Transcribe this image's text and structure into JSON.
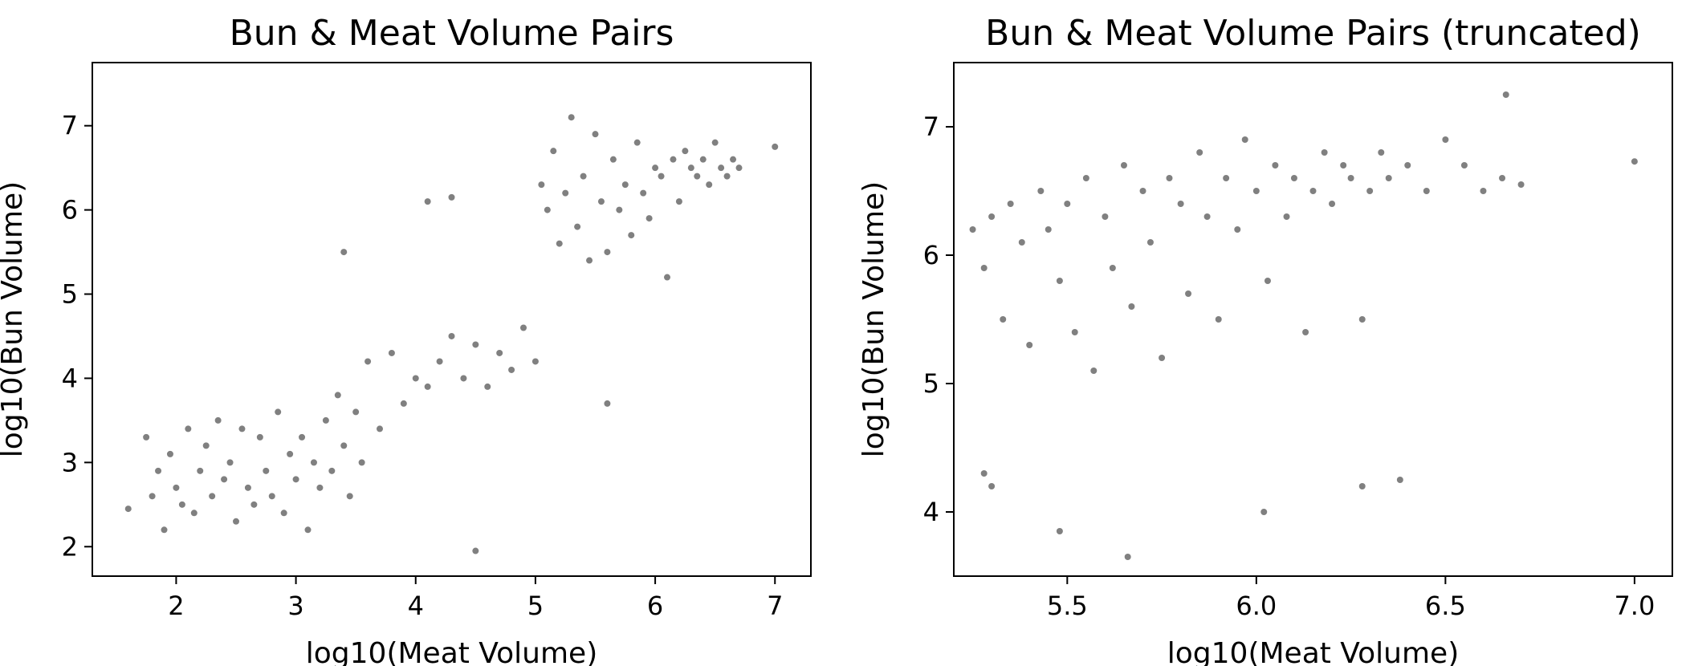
{
  "chart_data": [
    {
      "type": "scatter",
      "title": "Bun & Meat Volume Pairs",
      "xlabel": "log10(Meat Volume)",
      "ylabel": "log10(Bun Volume)",
      "xlim": [
        1.3,
        7.3
      ],
      "ylim": [
        1.65,
        7.75
      ],
      "xticks": [
        2,
        3,
        4,
        5,
        6,
        7
      ],
      "yticks": [
        2,
        3,
        4,
        5,
        6,
        7
      ],
      "xtick_labels": [
        "2",
        "3",
        "4",
        "5",
        "6",
        "7"
      ],
      "ytick_labels": [
        "2",
        "3",
        "4",
        "5",
        "6",
        "7"
      ],
      "grid": false,
      "marker_color": "#808080",
      "series": [
        {
          "x": [
            1.6,
            1.75,
            1.8,
            1.85,
            1.9,
            1.95,
            2.0,
            2.05,
            2.1,
            2.15,
            2.2,
            2.25,
            2.3,
            2.35,
            2.4,
            2.45,
            2.5,
            2.55,
            2.6,
            2.65,
            2.7,
            2.75,
            2.8,
            2.85,
            2.9,
            2.95,
            3.0,
            3.05,
            3.1,
            3.15,
            3.2,
            3.25,
            3.3,
            3.35,
            3.4,
            3.45,
            3.5,
            3.55,
            3.6,
            3.7,
            3.8,
            3.9,
            4.0,
            4.1,
            4.2,
            4.3,
            4.4,
            4.5,
            4.6,
            4.7,
            4.8,
            4.9,
            5.0,
            5.05,
            5.1,
            5.15,
            5.2,
            5.25,
            5.3,
            5.35,
            5.4,
            5.45,
            5.5,
            5.55,
            5.6,
            5.65,
            5.7,
            5.75,
            5.8,
            5.85,
            5.9,
            5.95,
            6.0,
            6.05,
            6.1,
            6.15,
            6.2,
            6.25,
            6.3,
            6.35,
            6.4,
            6.45,
            6.5,
            6.55,
            6.6,
            6.65,
            6.7,
            7.0,
            3.4,
            4.5,
            5.6,
            4.1,
            4.3
          ],
          "y": [
            2.45,
            3.3,
            2.6,
            2.9,
            2.2,
            3.1,
            2.7,
            2.5,
            3.4,
            2.4,
            2.9,
            3.2,
            2.6,
            3.5,
            2.8,
            3.0,
            2.3,
            3.4,
            2.7,
            2.5,
            3.3,
            2.9,
            2.6,
            3.6,
            2.4,
            3.1,
            2.8,
            3.3,
            2.2,
            3.0,
            2.7,
            3.5,
            2.9,
            3.8,
            3.2,
            2.6,
            3.6,
            3.0,
            4.2,
            3.4,
            4.3,
            3.7,
            4.0,
            3.9,
            4.2,
            4.5,
            4.0,
            4.4,
            3.9,
            4.3,
            4.1,
            4.6,
            4.2,
            6.3,
            6.0,
            6.7,
            5.6,
            6.2,
            7.1,
            5.8,
            6.4,
            5.4,
            6.9,
            6.1,
            5.5,
            6.6,
            6.0,
            6.3,
            5.7,
            6.8,
            6.2,
            5.9,
            6.5,
            6.4,
            5.2,
            6.6,
            6.1,
            6.7,
            6.5,
            6.4,
            6.6,
            6.3,
            6.8,
            6.5,
            6.4,
            6.6,
            6.5,
            6.75,
            5.5,
            1.95,
            3.7,
            6.1,
            6.15
          ]
        }
      ]
    },
    {
      "type": "scatter",
      "title": "Bun & Meat Volume Pairs (truncated)",
      "xlabel": "log10(Meat Volume)",
      "ylabel": "log10(Bun Volume)",
      "xlim": [
        5.2,
        7.1
      ],
      "ylim": [
        3.5,
        7.5
      ],
      "xticks": [
        5.5,
        6.0,
        6.5,
        7.0
      ],
      "yticks": [
        4,
        5,
        6,
        7
      ],
      "xtick_labels": [
        "5.5",
        "6.0",
        "6.5",
        "7.0"
      ],
      "ytick_labels": [
        "4",
        "5",
        "6",
        "7"
      ],
      "grid": false,
      "marker_color": "#808080",
      "series": [
        {
          "x": [
            5.25,
            5.28,
            5.3,
            5.33,
            5.35,
            5.38,
            5.4,
            5.43,
            5.45,
            5.48,
            5.5,
            5.52,
            5.55,
            5.57,
            5.6,
            5.62,
            5.65,
            5.67,
            5.7,
            5.72,
            5.75,
            5.77,
            5.8,
            5.82,
            5.85,
            5.87,
            5.9,
            5.92,
            5.95,
            5.97,
            6.0,
            6.03,
            6.05,
            6.08,
            6.1,
            6.13,
            6.15,
            6.18,
            6.2,
            6.23,
            6.25,
            6.28,
            6.3,
            6.33,
            6.35,
            6.4,
            6.45,
            6.5,
            6.55,
            6.6,
            6.65,
            6.7,
            7.0,
            5.28,
            5.3,
            5.48,
            5.66,
            6.02,
            6.28,
            6.38,
            6.66
          ],
          "y": [
            6.2,
            5.9,
            6.3,
            5.5,
            6.4,
            6.1,
            5.3,
            6.5,
            6.2,
            5.8,
            6.4,
            5.4,
            6.6,
            5.1,
            6.3,
            5.9,
            6.7,
            5.6,
            6.5,
            6.1,
            5.2,
            6.6,
            6.4,
            5.7,
            6.8,
            6.3,
            5.5,
            6.6,
            6.2,
            6.9,
            6.5,
            5.8,
            6.7,
            6.3,
            6.6,
            5.4,
            6.5,
            6.8,
            6.4,
            6.7,
            6.6,
            5.5,
            6.5,
            6.8,
            6.6,
            6.7,
            6.5,
            6.9,
            6.7,
            6.5,
            6.6,
            6.55,
            6.73,
            4.3,
            4.2,
            3.85,
            3.65,
            4.0,
            4.2,
            4.25,
            7.25
          ]
        }
      ]
    }
  ]
}
